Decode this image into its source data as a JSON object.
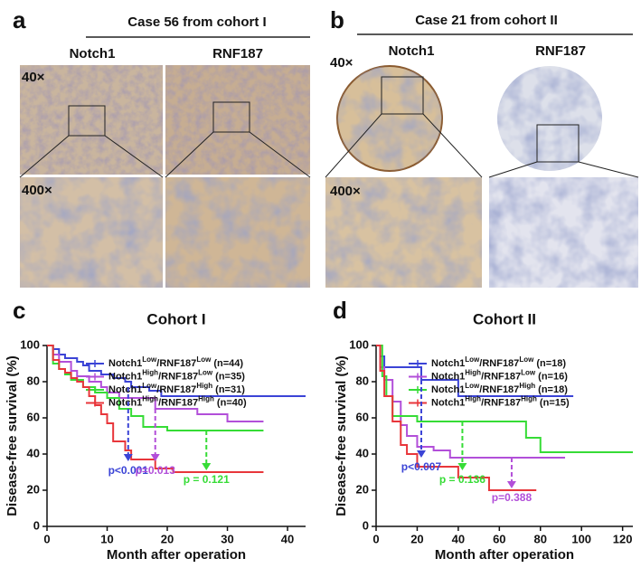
{
  "panels": [
    {
      "label": "a",
      "title": "Case 56 from cohort I",
      "columns": [
        "Notch1",
        "RNF187"
      ],
      "magnifications": [
        "40×",
        "400×"
      ]
    },
    {
      "label": "b",
      "title": "Case 21 from cohort II",
      "columns": [
        "Notch1",
        "RNF187"
      ],
      "magnifications": [
        "40×",
        "400×"
      ]
    }
  ],
  "chart_data": [
    {
      "type": "line",
      "step": true,
      "panel_label": "c",
      "title": "Cohort I",
      "ylabel": "Disease-free survival (%)",
      "xlabel": "Month after operation",
      "xlim": [
        0,
        43
      ],
      "xticks": [
        0,
        10,
        20,
        30,
        40
      ],
      "ylim": [
        0,
        100
      ],
      "yticks": [
        0,
        20,
        40,
        60,
        80,
        100
      ],
      "series": [
        {
          "name": "Notch1Low/RNF187Low (n=44)",
          "color": "#3b44d6",
          "x": [
            0,
            1,
            2,
            3,
            5,
            6,
            7,
            9,
            11,
            13,
            14,
            17,
            19,
            43
          ],
          "values": [
            100,
            98,
            95,
            93,
            91,
            89,
            86,
            84,
            82,
            80,
            77,
            75,
            72,
            72
          ]
        },
        {
          "name": "Notch1High/RNF187Low (n=35)",
          "color": "#b24fd9",
          "x": [
            0,
            1,
            2,
            4,
            5,
            7,
            9,
            10,
            12,
            18,
            25,
            30,
            36
          ],
          "values": [
            100,
            95,
            91,
            86,
            83,
            80,
            77,
            74,
            71,
            65,
            62,
            58,
            58
          ]
        },
        {
          "name": "Notch1Low/RNF187High (n=31)",
          "color": "#36dc36",
          "x": [
            0,
            1,
            2,
            3,
            4,
            6,
            8,
            10,
            12,
            14,
            16,
            20,
            36
          ],
          "values": [
            100,
            90,
            87,
            84,
            81,
            77,
            74,
            71,
            65,
            61,
            55,
            53,
            53
          ]
        },
        {
          "name": "Notch1High/RNF187High (n=40)",
          "color": "#e8363b",
          "x": [
            0,
            1,
            2,
            3,
            4,
            5,
            6,
            7,
            8,
            9,
            10,
            11,
            13,
            14,
            16,
            18,
            21,
            36
          ],
          "values": [
            100,
            92,
            87,
            85,
            82,
            80,
            77,
            72,
            67,
            62,
            57,
            47,
            42,
            37,
            37,
            32,
            30,
            30
          ]
        }
      ],
      "annotations": [
        {
          "text": "p<0.001",
          "color": "#3b44d6",
          "x": 13.5,
          "y_from": 77,
          "y_to": 36
        },
        {
          "text": "p=0.013",
          "color": "#b24fd9",
          "x": 18,
          "y_from": 65,
          "y_to": 36
        },
        {
          "text": "p = 0.121",
          "color": "#36dc36",
          "x": 26.5,
          "y_from": 53,
          "y_to": 31
        }
      ]
    },
    {
      "type": "line",
      "step": true,
      "panel_label": "d",
      "title": "Cohort II",
      "ylabel": "Disease-free survival (%)",
      "xlabel": "Month after operation",
      "xlim": [
        0,
        125
      ],
      "xticks": [
        0,
        20,
        40,
        60,
        80,
        100,
        120
      ],
      "ylim": [
        0,
        100
      ],
      "yticks": [
        0,
        20,
        40,
        60,
        80,
        100
      ],
      "series": [
        {
          "name": "Notch1Low/RNF187Low (n=18)",
          "color": "#3b44d6",
          "x": [
            0,
            2,
            4,
            22,
            40,
            96
          ],
          "values": [
            100,
            94,
            88,
            81,
            72,
            72
          ]
        },
        {
          "name": "Notch1High/RNF187Low (n=16)",
          "color": "#b24fd9",
          "x": [
            0,
            2,
            4,
            8,
            12,
            15,
            20,
            28,
            36,
            92
          ],
          "values": [
            100,
            88,
            81,
            69,
            56,
            50,
            44,
            42,
            38,
            38
          ]
        },
        {
          "name": "Notch1Low/RNF187High (n=18)",
          "color": "#36dc36",
          "x": [
            0,
            3,
            5,
            8,
            20,
            73,
            80,
            125
          ],
          "values": [
            100,
            83,
            72,
            61,
            58,
            49,
            41,
            41
          ]
        },
        {
          "name": "Notch1High/RNF187High (n=15)",
          "color": "#e8363b",
          "x": [
            0,
            2,
            4,
            8,
            12,
            15,
            20,
            40,
            55,
            78
          ],
          "values": [
            100,
            86,
            72,
            58,
            45,
            40,
            33,
            27,
            20,
            20
          ]
        }
      ],
      "annotations": [
        {
          "text": "p<0.007",
          "color": "#3b44d6",
          "x": 22,
          "y_from": 81,
          "y_to": 38
        },
        {
          "text": "p = 0.136",
          "color": "#36dc36",
          "x": 42,
          "y_from": 58,
          "y_to": 31
        },
        {
          "text": "p=0.388",
          "color": "#b24fd9",
          "x": 66,
          "y_from": 38,
          "y_to": 21
        }
      ]
    }
  ]
}
